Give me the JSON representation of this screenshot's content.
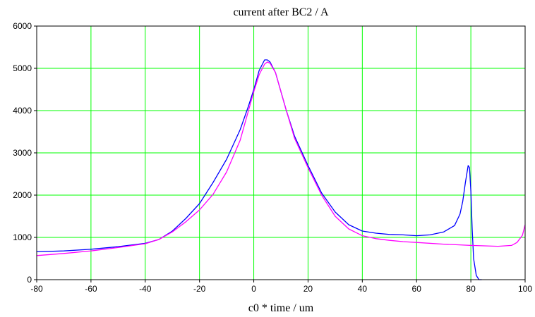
{
  "chart_data": {
    "type": "line",
    "title": "current after BC2 / A",
    "xlabel": "c0 * time / um",
    "ylabel": "",
    "xlim": [
      -80,
      100
    ],
    "ylim": [
      0,
      6000
    ],
    "xticks": [
      "-80",
      "-60",
      "-40",
      "-20",
      "0",
      "20",
      "40",
      "60",
      "80",
      "100"
    ],
    "yticks": [
      "0",
      "1000",
      "2000",
      "3000",
      "4000",
      "5000",
      "6000"
    ],
    "grid": true,
    "grid_color": "#00ff00",
    "series": [
      {
        "color": "#0000ff",
        "x": [
          -80,
          -70,
          -60,
          -50,
          -40,
          -35,
          -30,
          -25,
          -20,
          -15,
          -10,
          -5,
          -2,
          0,
          2,
          4,
          5,
          6,
          8,
          10,
          12,
          15,
          20,
          25,
          30,
          35,
          40,
          45,
          50,
          55,
          60,
          65,
          70,
          74,
          76,
          77,
          78,
          79,
          79.5,
          80,
          80.5,
          81,
          82,
          83,
          84
        ],
        "y": [
          660,
          680,
          720,
          780,
          860,
          950,
          1150,
          1450,
          1800,
          2300,
          2850,
          3550,
          4100,
          4500,
          4950,
          5200,
          5200,
          5150,
          4900,
          4450,
          4000,
          3400,
          2700,
          2050,
          1600,
          1300,
          1150,
          1100,
          1070,
          1060,
          1040,
          1060,
          1130,
          1280,
          1550,
          1850,
          2300,
          2700,
          2650,
          2100,
          1200,
          500,
          100,
          0,
          0
        ]
      },
      {
        "color": "#ff00ff",
        "x": [
          -80,
          -70,
          -60,
          -50,
          -40,
          -35,
          -30,
          -25,
          -20,
          -15,
          -10,
          -5,
          0,
          2,
          4,
          5,
          6,
          8,
          10,
          12,
          15,
          20,
          25,
          30,
          35,
          40,
          45,
          50,
          55,
          60,
          70,
          80,
          90,
          95,
          97,
          99,
          100
        ],
        "y": [
          570,
          620,
          680,
          760,
          850,
          950,
          1130,
          1370,
          1650,
          2020,
          2550,
          3300,
          4450,
          4850,
          5100,
          5150,
          5120,
          4900,
          4450,
          4000,
          3350,
          2650,
          2000,
          1500,
          1200,
          1040,
          970,
          930,
          900,
          880,
          840,
          810,
          790,
          810,
          880,
          1050,
          1300
        ]
      }
    ]
  }
}
